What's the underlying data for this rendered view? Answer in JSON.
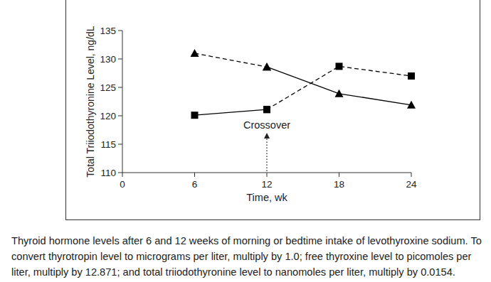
{
  "chart_data": {
    "type": "line",
    "caption": "Thyroid hormone levels after 6 and 12 weeks of morning or bedtime intake of levothyroxine sodium. To convert thyrotropin level to micrograms per liter, multiply by 1.0; free thyroxine level to picomoles per liter, multiply by 12.871; and total triiodothyronine level to nanomoles per liter, multiply by 0.0154.",
    "x_label": "Time, wk",
    "y_label": "Total Triiodothyronine Level, ng/dL",
    "x": [
      6,
      12,
      18,
      24
    ],
    "series": [
      {
        "color": "#000000",
        "marker": "triangle",
        "line_style": "dashed",
        "values": [
          131.0,
          128.6,
          null,
          null
        ]
      },
      {
        "color": "#000000",
        "marker": "triangle",
        "line_style": "solid",
        "values": [
          null,
          128.6,
          123.9,
          121.9
        ]
      },
      {
        "color": "#000000",
        "marker": "square",
        "line_style": "solid",
        "values": [
          120.1,
          121.1,
          null,
          null
        ]
      },
      {
        "color": "#000000",
        "marker": "square",
        "line_style": "dashed",
        "values": [
          null,
          121.1,
          128.7,
          127.0
        ]
      }
    ],
    "xlim": [
      0,
      24
    ],
    "xticks": [
      0,
      6,
      12,
      18,
      24
    ],
    "ylim": [
      110,
      135
    ],
    "yticks": [
      110,
      115,
      120,
      125,
      130,
      135
    ],
    "annotations": [
      {
        "text": "Crossover",
        "x": 12
      }
    ],
    "grid": false
  }
}
